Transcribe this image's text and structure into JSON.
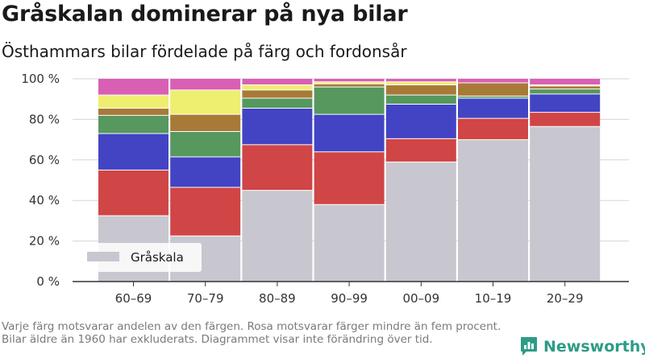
{
  "header": {
    "title": "Gråskalan dominerar på nya bilar",
    "subtitle": "Östhammars bilar fördelade på färg och fordonsår"
  },
  "footnote": "Varje färg motsvarar andelen av den färgen. Rosa motsvarar färger mindre än fem procent. Bilar äldre än 1960 har exkluderats. Diagrammet visar inte förändring över tid.",
  "brand": {
    "name": "Newsworthy",
    "color": "#2d9c86"
  },
  "chart_data": {
    "type": "bar",
    "stacked": true,
    "categories": [
      "60–69",
      "70–79",
      "80–89",
      "90–99",
      "00–09",
      "10–19",
      "20–29"
    ],
    "ylim": [
      0,
      100
    ],
    "yticks": [
      0,
      20,
      40,
      60,
      80,
      100
    ],
    "ytick_labels": [
      "0 %",
      "20 %",
      "40 %",
      "60 %",
      "80 %",
      "100 %"
    ],
    "grid": true,
    "legend": {
      "placement": "bottom-left",
      "entries": [
        "Gråskala"
      ]
    },
    "series": [
      {
        "name": "Gråskala",
        "color": "#c8c7cf",
        "values": [
          32.5,
          22.5,
          45,
          38,
          59,
          70,
          76.5
        ]
      },
      {
        "color": "#d04545",
        "values": [
          22.5,
          24,
          22.5,
          26,
          11.5,
          10.5,
          7
        ]
      },
      {
        "color": "#4244c4",
        "values": [
          18,
          15,
          18,
          18.5,
          17,
          10,
          9
        ]
      },
      {
        "color": "#56985e",
        "values": [
          9,
          12.5,
          5,
          13.5,
          4.5,
          1,
          2.5
        ]
      },
      {
        "color": "#a87a38",
        "values": [
          3.5,
          8.5,
          4,
          1.5,
          5,
          6.5,
          1.5
        ]
      },
      {
        "color": "#eeee70",
        "values": [
          6.5,
          12,
          2.5,
          1,
          1.5,
          0,
          0.5
        ]
      },
      {
        "color": "#d95fb5",
        "values": [
          8,
          5.5,
          3,
          1.5,
          1.5,
          2,
          3
        ]
      }
    ]
  }
}
